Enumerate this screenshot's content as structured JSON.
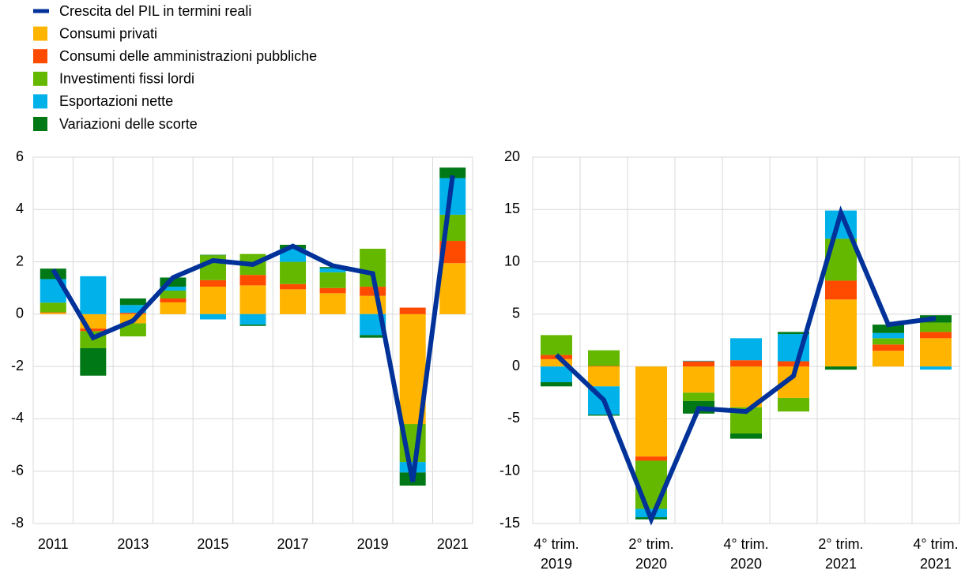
{
  "chart_data": [
    {
      "type": "bar",
      "categories": [
        "2011",
        null,
        "2013",
        null,
        "2015",
        null,
        "2017",
        null,
        "2019",
        null,
        "2021"
      ],
      "ylim": [
        -8,
        6
      ],
      "yticks": [
        -8,
        -6,
        -4,
        -2,
        0,
        2,
        4,
        6
      ],
      "grid": true,
      "series": [
        {
          "name": "Crescita del PIL in termini reali",
          "type": "line",
          "color": "#003299",
          "values": [
            1.7,
            -0.9,
            -0.25,
            1.4,
            2.05,
            1.9,
            2.6,
            1.85,
            1.55,
            -6.4,
            5.3
          ]
        },
        {
          "name": "Consumi privati",
          "color": "#ffb400",
          "values": [
            0.05,
            -0.55,
            -0.35,
            0.45,
            1.05,
            1.1,
            0.95,
            0.8,
            0.7,
            -4.2,
            1.95
          ]
        },
        {
          "name": "Consumi delle amministrazioni pubbliche",
          "color": "#ff4b00",
          "values": [
            0.02,
            -0.1,
            0.05,
            0.15,
            0.25,
            0.4,
            0.2,
            0.2,
            0.35,
            0.25,
            0.85
          ]
        },
        {
          "name": "Investimenti fissi lordi",
          "color": "#65b800",
          "values": [
            0.37,
            -0.65,
            -0.5,
            0.3,
            0.95,
            0.8,
            0.85,
            0.6,
            1.45,
            -1.45,
            1.0
          ]
        },
        {
          "name": "Esportazioni nette",
          "color": "#00b1ea",
          "values": [
            0.9,
            1.45,
            0.3,
            0.15,
            -0.2,
            -0.4,
            0.5,
            0.15,
            -0.8,
            -0.4,
            1.4
          ]
        },
        {
          "name": "Variazioni delle scorte",
          "color": "#007816",
          "values": [
            0.4,
            -1.05,
            0.25,
            0.35,
            0.02,
            -0.05,
            0.15,
            0.05,
            -0.1,
            -0.5,
            0.4
          ]
        }
      ]
    },
    {
      "type": "bar",
      "categories": [
        [
          "4° trim.",
          "2019"
        ],
        null,
        [
          "2° trim.",
          "2020"
        ],
        null,
        [
          "4° trim.",
          "2020"
        ],
        null,
        [
          "2° trim.",
          "2021"
        ],
        null,
        [
          "4° trim.",
          "2021"
        ]
      ],
      "ylim": [
        -15,
        20
      ],
      "yticks": [
        -15,
        -10,
        -5,
        0,
        5,
        10,
        15,
        20
      ],
      "grid": true,
      "series": [
        {
          "type": "line",
          "color": "#003299",
          "values": [
            1.1,
            -3.2,
            -14.6,
            -4.0,
            -4.3,
            -0.9,
            14.7,
            4.0,
            4.6
          ]
        },
        {
          "color": "#ffb400",
          "values": [
            0.7,
            -1.9,
            -8.6,
            -2.5,
            -3.9,
            -3.0,
            6.4,
            1.5,
            2.7
          ]
        },
        {
          "color": "#ff4b00",
          "values": [
            0.4,
            0.05,
            -0.4,
            0.5,
            0.6,
            0.5,
            1.8,
            0.6,
            0.6
          ]
        },
        {
          "color": "#65b800",
          "values": [
            1.9,
            1.5,
            -4.6,
            -0.8,
            -2.5,
            -1.3,
            4.0,
            0.6,
            0.9
          ]
        },
        {
          "color": "#00b1ea",
          "values": [
            -1.5,
            -2.7,
            -0.8,
            0.05,
            2.1,
            2.6,
            2.7,
            0.5,
            -0.3
          ]
        },
        {
          "color": "#007816",
          "values": [
            -0.4,
            -0.1,
            -0.2,
            -1.2,
            -0.5,
            0.2,
            -0.3,
            0.8,
            0.7
          ]
        }
      ]
    }
  ]
}
